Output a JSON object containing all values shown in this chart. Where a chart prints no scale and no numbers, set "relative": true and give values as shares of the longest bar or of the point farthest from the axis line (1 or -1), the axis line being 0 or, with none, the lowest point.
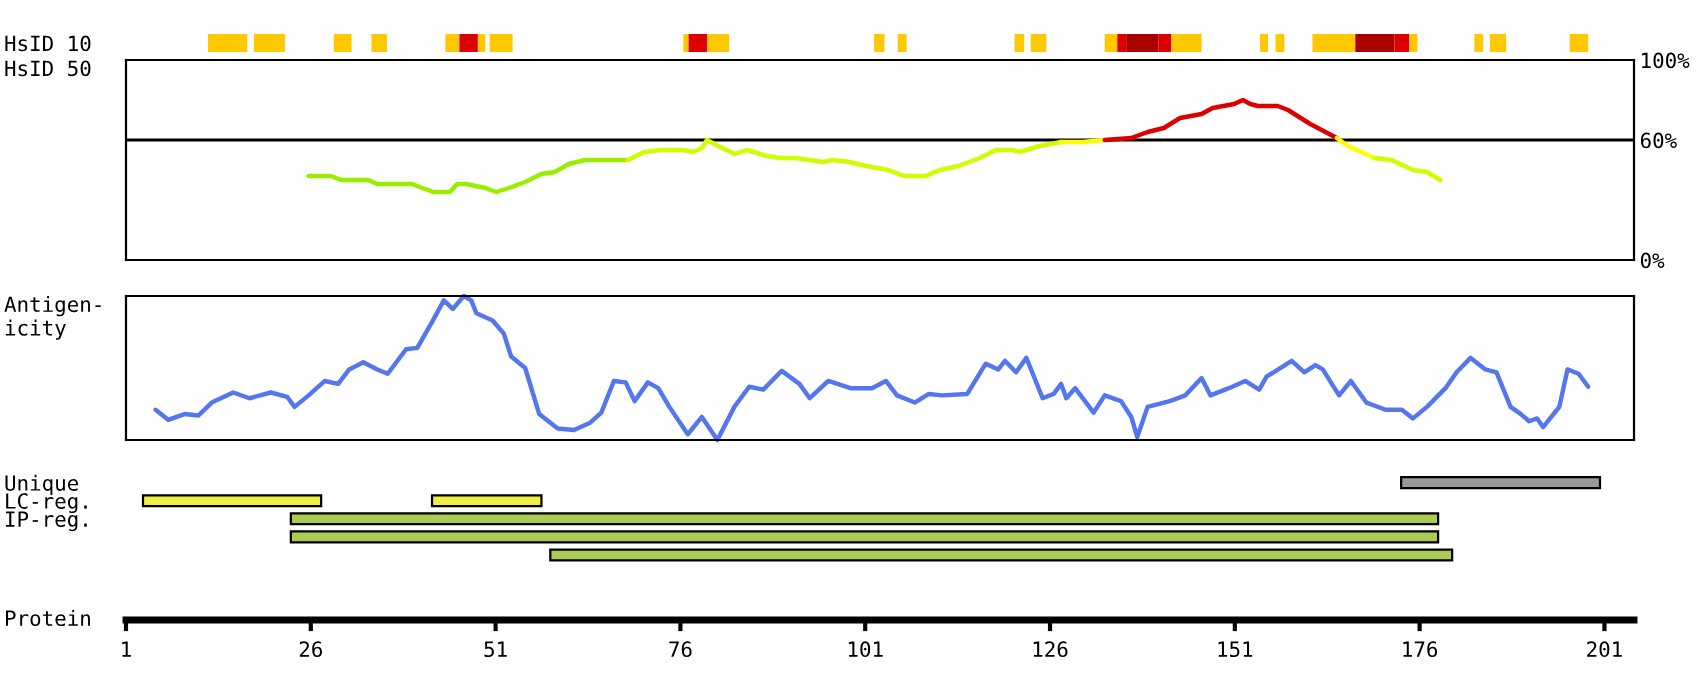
{
  "chart_data": [
    {
      "type": "bar",
      "orientation": "horizontal",
      "xlim": [
        1,
        205
      ],
      "tick_labels": "y",
      "categories": [
        "HsID 10"
      ],
      "series": [
        {
          "color": "#ffc800",
          "base": [
            12.1
          ],
          "values": [
            5.3
          ]
        },
        {
          "color": "#ffc800",
          "base": [
            18.3
          ],
          "values": [
            4.2
          ]
        },
        {
          "color": "#ffc800",
          "base": [
            29.1
          ],
          "values": [
            2.4
          ]
        },
        {
          "color": "#ffc800",
          "base": [
            34.2
          ],
          "values": [
            2.1
          ]
        },
        {
          "color": "#ffc800",
          "base": [
            44.2
          ],
          "values": [
            1.9
          ]
        },
        {
          "color": "#dd0000",
          "base": [
            46.1
          ],
          "values": [
            2.5
          ]
        },
        {
          "color": "#ffc800",
          "base": [
            48.6
          ],
          "values": [
            1.0
          ]
        },
        {
          "color": "#ffc800",
          "base": [
            50.2
          ],
          "values": [
            3.1
          ]
        },
        {
          "color": "#ffc800",
          "base": [
            76.4
          ],
          "values": [
            0.7
          ]
        },
        {
          "color": "#dd0000",
          "base": [
            77.1
          ],
          "values": [
            2.5
          ]
        },
        {
          "color": "#ffc800",
          "base": [
            79.6
          ],
          "values": [
            3.0
          ]
        },
        {
          "color": "#ffc800",
          "base": [
            102.2
          ],
          "values": [
            1.4
          ]
        },
        {
          "color": "#ffc800",
          "base": [
            105.4
          ],
          "values": [
            1.2
          ]
        },
        {
          "color": "#ffc800",
          "base": [
            121.2
          ],
          "values": [
            1.3
          ]
        },
        {
          "color": "#ffc800",
          "base": [
            123.4
          ],
          "values": [
            2.1
          ]
        },
        {
          "color": "#ffc800",
          "base": [
            133.4
          ],
          "values": [
            1.7
          ]
        },
        {
          "color": "#dd0000",
          "base": [
            135.1
          ],
          "values": [
            1.2
          ]
        },
        {
          "color": "#aa0000",
          "base": [
            136.3
          ],
          "values": [
            4.4
          ]
        },
        {
          "color": "#dd0000",
          "base": [
            140.7
          ],
          "values": [
            1.7
          ]
        },
        {
          "color": "#ffc800",
          "base": [
            142.4
          ],
          "values": [
            4.1
          ]
        },
        {
          "color": "#ffc800",
          "base": [
            154.4
          ],
          "values": [
            1.1
          ]
        },
        {
          "color": "#ffc800",
          "base": [
            156.5
          ],
          "values": [
            1.2
          ]
        },
        {
          "color": "#ffc800",
          "base": [
            161.5
          ],
          "values": [
            5.8
          ]
        },
        {
          "color": "#aa0000",
          "base": [
            167.3
          ],
          "values": [
            5.3
          ]
        },
        {
          "color": "#dd0000",
          "base": [
            172.6
          ],
          "values": [
            2.0
          ]
        },
        {
          "color": "#ffc800",
          "base": [
            174.6
          ],
          "values": [
            1.1
          ]
        },
        {
          "color": "#ffc800",
          "base": [
            183.4
          ],
          "values": [
            1.2
          ]
        },
        {
          "color": "#ffc800",
          "base": [
            185.5
          ],
          "values": [
            2.2
          ]
        },
        {
          "color": "#ffc800",
          "base": [
            196.3
          ],
          "values": [
            2.5
          ]
        }
      ]
    },
    {
      "type": "line",
      "ylabel": "HsID 50",
      "xlim": [
        1,
        205
      ],
      "ylim": [
        0,
        100
      ],
      "tick_labels": "y",
      "yticks": [
        {
          "value": 0,
          "label": "0%"
        },
        {
          "value": 60,
          "label": "60%"
        },
        {
          "value": 100,
          "label": "100%"
        }
      ],
      "ref_lines": [
        {
          "axis": "y",
          "value": 60,
          "color": "#000000"
        }
      ],
      "series": [
        {
          "color": "#99ee00",
          "x": [
            25.7,
            28.7,
            30.1,
            33.8,
            35.0,
            39.7,
            41.1,
            42.6,
            44.8,
            45.8,
            47.0,
            49.6,
            51.1,
            52.8,
            55.0,
            57.2,
            59.0,
            60.9,
            63.1,
            68.9
          ],
          "values": [
            42,
            42,
            40,
            40,
            38,
            38,
            36,
            34,
            34,
            38,
            38,
            36,
            34,
            36,
            39,
            43,
            44,
            48,
            50,
            50
          ]
        },
        {
          "color": "#ccff00",
          "x": [
            68.9,
            71.1,
            73.3,
            76.3,
            77.7,
            78.9,
            79.6,
            80.6,
            83.3,
            85.0,
            87.7,
            89.4,
            91.6,
            95.3,
            96.5,
            98.9,
            101.1,
            104.1,
            106.3,
            109.2,
            111.1,
            113.6,
            116.5,
            118.7,
            120.9,
            121.9,
            124.6,
            127.5
          ],
          "values": [
            50,
            54,
            55,
            55,
            54,
            56,
            60,
            58,
            53,
            55,
            52,
            51,
            51,
            49,
            50,
            49,
            47,
            45,
            42,
            42,
            45,
            47,
            51,
            55,
            55,
            54,
            57,
            59
          ]
        },
        {
          "color": "#ffff00",
          "x": [
            127.5,
            130.4,
            133.4
          ],
          "values": [
            59,
            59,
            60
          ]
        },
        {
          "color": "#dd0000",
          "x": [
            133.4,
            137.0,
            139.2,
            141.4,
            143.6,
            146.5,
            148.0,
            150.9,
            152.1,
            153.1,
            154.1,
            156.8,
            158.2,
            161.2,
            164.8
          ],
          "values": [
            60,
            61,
            64,
            66,
            71,
            73,
            76,
            78,
            80,
            78,
            77,
            77,
            75,
            68,
            61
          ]
        },
        {
          "color": "#ffff00",
          "x": [
            164.8,
            166.3,
            169.9
          ],
          "values": [
            61,
            57,
            51
          ]
        },
        {
          "color": "#ccff00",
          "x": [
            169.9,
            172.2,
            175.1,
            177.0,
            178.8
          ],
          "values": [
            51,
            50,
            45,
            44,
            40
          ]
        }
      ]
    },
    {
      "type": "line",
      "ylabel": "Antigen-\nicity",
      "relative": true,
      "xlim": [
        1,
        205
      ],
      "tick_labels": false,
      "series": [
        {
          "color": "#5577ee",
          "x": [
            5.0,
            6.7,
            8.9,
            10.8,
            12.6,
            15.5,
            17.7,
            20.6,
            22.8,
            23.8,
            25.7,
            27.9,
            29.7,
            31.2,
            33.1,
            35.0,
            36.4,
            38.9,
            40.4,
            42.3,
            44.0,
            45.2,
            46.7,
            47.7,
            48.4,
            50.6,
            52.1,
            53.1,
            55.0,
            56.9,
            59.4,
            61.6,
            63.8,
            65.3,
            67.0,
            68.6,
            69.8,
            71.6,
            73.0,
            74.5,
            77.0,
            78.9,
            81.0,
            83.3,
            85.3,
            87.2,
            89.7,
            92.1,
            93.5,
            96.0,
            99.0,
            101.9,
            103.8,
            105.3,
            107.7,
            109.6,
            111.4,
            114.8,
            117.3,
            119.0,
            119.9,
            121.4,
            122.8,
            125.0,
            126.5,
            127.5,
            128.2,
            129.4,
            131.9,
            133.4,
            135.6,
            137.0,
            137.8,
            139.2,
            142.2,
            144.3,
            146.5,
            147.7,
            150.2,
            152.4,
            154.3,
            155.3,
            158.7,
            160.4,
            161.9,
            162.9,
            165.1,
            166.7,
            168.8,
            171.4,
            173.6,
            175.1,
            177.0,
            179.5,
            181.0,
            182.9,
            184.9,
            186.4,
            188.3,
            189.7,
            190.8,
            191.9,
            192.7,
            194.9,
            196.0,
            197.5,
            198.8
          ],
          "values": [
            0.21,
            0.14,
            0.18,
            0.17,
            0.26,
            0.33,
            0.29,
            0.33,
            0.3,
            0.23,
            0.31,
            0.41,
            0.39,
            0.49,
            0.54,
            0.49,
            0.46,
            0.63,
            0.64,
            0.81,
            0.97,
            0.91,
            1.0,
            0.97,
            0.88,
            0.83,
            0.74,
            0.58,
            0.5,
            0.18,
            0.08,
            0.07,
            0.12,
            0.19,
            0.41,
            0.4,
            0.27,
            0.4,
            0.36,
            0.23,
            0.04,
            0.16,
            0,
            0.23,
            0.37,
            0.35,
            0.48,
            0.39,
            0.29,
            0.41,
            0.36,
            0.36,
            0.41,
            0.31,
            0.26,
            0.32,
            0.31,
            0.32,
            0.53,
            0.49,
            0.55,
            0.47,
            0.57,
            0.29,
            0.32,
            0.39,
            0.29,
            0.36,
            0.19,
            0.31,
            0.27,
            0.16,
            0.02,
            0.23,
            0.27,
            0.31,
            0.43,
            0.31,
            0.36,
            0.41,
            0.35,
            0.44,
            0.55,
            0.47,
            0.52,
            0.49,
            0.31,
            0.41,
            0.26,
            0.21,
            0.21,
            0.15,
            0.23,
            0.36,
            0.47,
            0.57,
            0.49,
            0.47,
            0.23,
            0.18,
            0.13,
            0.15,
            0.09,
            0.23,
            0.49,
            0.46,
            0.37
          ]
        }
      ]
    },
    {
      "type": "bar",
      "orientation": "horizontal",
      "xlabel": "Protein",
      "xlim": [
        1,
        205
      ],
      "xticks": [
        1,
        26,
        51,
        76,
        101,
        126,
        151,
        176,
        201
      ],
      "categories": [
        "Unique",
        "LC-reg.",
        "IP-reg.",
        null,
        null
      ],
      "series": [
        {
          "color": "#999999",
          "base": [
            173.5,
            null,
            null,
            null,
            null
          ],
          "values": [
            26.9,
            null,
            null,
            null,
            null
          ]
        },
        {
          "color": "#eeee44",
          "base": [
            null,
            3.3,
            null,
            null,
            null
          ],
          "values": [
            null,
            24.1,
            null,
            null,
            null
          ]
        },
        {
          "color": "#eeee44",
          "base": [
            null,
            42.4,
            null,
            null,
            null
          ],
          "values": [
            null,
            14.8,
            null,
            null,
            null
          ]
        },
        {
          "color": "#aacc55",
          "base": [
            null,
            null,
            23.3,
            23.3,
            58.4
          ],
          "values": [
            null,
            null,
            155.2,
            155.2,
            122.0
          ]
        }
      ]
    }
  ]
}
